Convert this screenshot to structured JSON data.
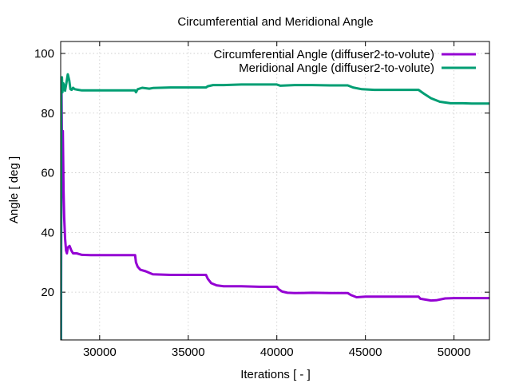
{
  "chart_data": {
    "type": "line",
    "title": "Circumferential and Meridional Angle",
    "xlabel": "Iterations [ - ]",
    "ylabel": "Angle [ deg ]",
    "xlim": [
      27800,
      52000
    ],
    "ylim": [
      4,
      104
    ],
    "xticks": [
      30000,
      35000,
      40000,
      45000,
      50000
    ],
    "yticks": [
      20,
      40,
      60,
      80,
      100
    ],
    "grid": true,
    "legend_position": "top-right",
    "series": [
      {
        "name": "Circumferential Angle (diffuser2-to-volute)",
        "color": "#9400d3",
        "points": [
          [
            27820,
            3
          ],
          [
            27850,
            88
          ],
          [
            27880,
            60
          ],
          [
            27920,
            74
          ],
          [
            27960,
            54
          ],
          [
            28000,
            45
          ],
          [
            28050,
            38
          ],
          [
            28100,
            34
          ],
          [
            28150,
            33
          ],
          [
            28200,
            35
          ],
          [
            28300,
            35.5
          ],
          [
            28400,
            34
          ],
          [
            28500,
            33
          ],
          [
            28700,
            33
          ],
          [
            29000,
            32.5
          ],
          [
            29500,
            32.4
          ],
          [
            30000,
            32.4
          ],
          [
            31000,
            32.4
          ],
          [
            32000,
            32.4
          ],
          [
            32050,
            30
          ],
          [
            32150,
            28.5
          ],
          [
            32300,
            27.5
          ],
          [
            32600,
            27
          ],
          [
            33000,
            26
          ],
          [
            34000,
            25.8
          ],
          [
            35000,
            25.8
          ],
          [
            36000,
            25.8
          ],
          [
            36100,
            24.5
          ],
          [
            36300,
            23
          ],
          [
            36600,
            22.3
          ],
          [
            37000,
            22
          ],
          [
            38000,
            22
          ],
          [
            39000,
            21.8
          ],
          [
            40000,
            21.8
          ],
          [
            40100,
            21
          ],
          [
            40300,
            20.2
          ],
          [
            40600,
            19.8
          ],
          [
            41000,
            19.7
          ],
          [
            42000,
            19.8
          ],
          [
            43000,
            19.7
          ],
          [
            44000,
            19.7
          ],
          [
            44200,
            19
          ],
          [
            44500,
            18.3
          ],
          [
            45000,
            18.5
          ],
          [
            46000,
            18.5
          ],
          [
            47000,
            18.5
          ],
          [
            48000,
            18.5
          ],
          [
            48100,
            17.8
          ],
          [
            48400,
            17.5
          ],
          [
            48700,
            17.2
          ],
          [
            49000,
            17.3
          ],
          [
            49500,
            17.9
          ],
          [
            50000,
            18
          ],
          [
            51000,
            18
          ],
          [
            52000,
            18
          ]
        ]
      },
      {
        "name": "Meridional Angle (diffuser2-to-volute)",
        "color": "#009e73",
        "points": [
          [
            27810,
            3
          ],
          [
            27830,
            88
          ],
          [
            27870,
            92
          ],
          [
            27900,
            87
          ],
          [
            27950,
            90
          ],
          [
            28000,
            89
          ],
          [
            28050,
            87.5
          ],
          [
            28120,
            90
          ],
          [
            28200,
            93
          ],
          [
            28280,
            91
          ],
          [
            28350,
            88
          ],
          [
            28420,
            87.8
          ],
          [
            28500,
            88.5
          ],
          [
            28600,
            88
          ],
          [
            28800,
            87.8
          ],
          [
            29000,
            87.6
          ],
          [
            30000,
            87.6
          ],
          [
            31000,
            87.6
          ],
          [
            32000,
            87.6
          ],
          [
            32050,
            87
          ],
          [
            32150,
            88
          ],
          [
            32400,
            88.5
          ],
          [
            32800,
            88.2
          ],
          [
            33000,
            88.4
          ],
          [
            34000,
            88.6
          ],
          [
            35000,
            88.6
          ],
          [
            36000,
            88.6
          ],
          [
            36100,
            89
          ],
          [
            36400,
            89.4
          ],
          [
            37000,
            89.4
          ],
          [
            38000,
            89.6
          ],
          [
            39000,
            89.6
          ],
          [
            40000,
            89.6
          ],
          [
            40200,
            89.2
          ],
          [
            41000,
            89.4
          ],
          [
            42000,
            89.4
          ],
          [
            43000,
            89.3
          ],
          [
            44000,
            89.3
          ],
          [
            44300,
            88.6
          ],
          [
            44800,
            88
          ],
          [
            45500,
            87.8
          ],
          [
            46000,
            87.8
          ],
          [
            47000,
            87.8
          ],
          [
            48000,
            87.8
          ],
          [
            48300,
            86.5
          ],
          [
            48700,
            85
          ],
          [
            49200,
            83.8
          ],
          [
            49800,
            83.3
          ],
          [
            50500,
            83.3
          ],
          [
            51000,
            83.2
          ],
          [
            52000,
            83.2
          ]
        ]
      }
    ]
  }
}
